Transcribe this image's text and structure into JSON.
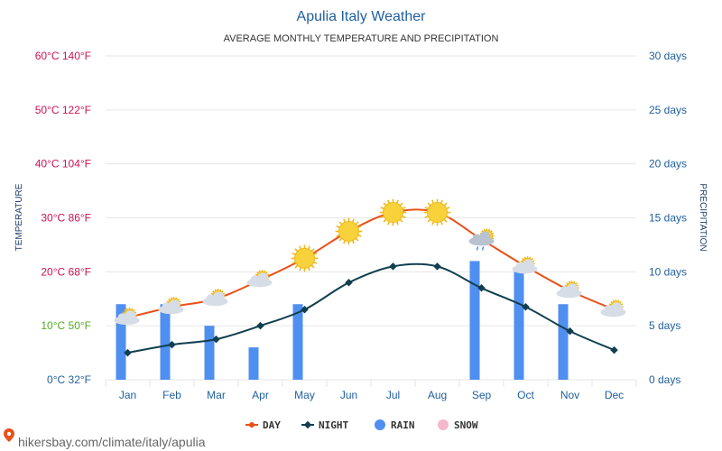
{
  "chart_data": {
    "type": "line",
    "title": "Apulia Italy Weather",
    "subtitle": "AVERAGE MONTHLY TEMPERATURE AND PRECIPITATION",
    "categories": [
      "Jan",
      "Feb",
      "Mar",
      "Apr",
      "May",
      "Jun",
      "Jul",
      "Aug",
      "Sep",
      "Oct",
      "Nov",
      "Dec"
    ],
    "y_left_label": "TEMPERATURE",
    "y_right_label": "PRECIPITATION",
    "y_left_ticks": [
      "0°C 32°F",
      "10°C 50°F",
      "20°C 68°F",
      "30°C 86°F",
      "40°C 104°F",
      "50°C 122°F",
      "60°C 140°F"
    ],
    "y_left_tick_colors": [
      "#1f5f9f",
      "#55aa22",
      "#cc1155",
      "#cc1155",
      "#cc1155",
      "#cc1155",
      "#cc1155"
    ],
    "y_right_ticks": [
      "0 days",
      "5 days",
      "10 days",
      "15 days",
      "20 days",
      "25 days",
      "30 days"
    ],
    "y_left_range": [
      0,
      60
    ],
    "y_right_range": [
      0,
      30
    ],
    "grid": true,
    "legend_position": "bottom",
    "series": [
      {
        "name": "DAY",
        "axis": "left",
        "unit": "°C",
        "color": "#e8501a",
        "values": [
          11.5,
          13.5,
          15,
          18.5,
          22.5,
          27.5,
          31,
          31,
          26,
          21,
          16.5,
          13
        ]
      },
      {
        "name": "NIGHT",
        "axis": "left",
        "unit": "°C",
        "color": "#123f4f",
        "values": [
          5,
          6.5,
          7.5,
          10,
          13,
          18,
          21,
          21,
          17,
          13.5,
          9,
          5.5
        ]
      },
      {
        "name": "RAIN",
        "axis": "right",
        "unit": "days",
        "color": "#4f8ff0",
        "values": [
          7,
          7,
          5,
          3,
          7,
          0,
          0,
          0,
          11,
          10,
          7,
          0
        ]
      },
      {
        "name": "SNOW",
        "axis": "right",
        "unit": "days",
        "color": "#f4b8cc",
        "values": [
          0,
          0,
          0,
          0,
          0,
          0,
          0,
          0,
          0,
          0,
          0,
          0
        ]
      }
    ],
    "weather_icons": [
      "partly-cloudy-icon",
      "partly-cloudy-icon",
      "partly-cloudy-icon",
      "partly-cloudy-icon",
      "sun-icon",
      "sun-icon",
      "sun-icon",
      "sun-icon",
      "rain-cloud-icon",
      "partly-cloudy-icon",
      "partly-cloudy-icon",
      "partly-cloudy-icon"
    ]
  },
  "footer": {
    "text": "hikersbay.com/climate/italy/apulia",
    "icon": "location-pin-icon"
  },
  "colors": {
    "grid": "#e6e6e6",
    "title": "#1f5f9f",
    "axis_right": "#1f5f9f",
    "sun": "#f7d23a",
    "cloud": "#d7dde6"
  }
}
